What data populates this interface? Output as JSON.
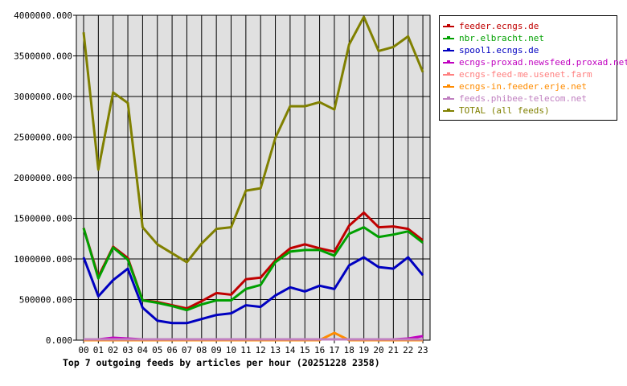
{
  "chart_data": {
    "type": "line",
    "title": "Top 7 outgoing feeds by articles per hour (20251228 2358)",
    "xlabel": "",
    "ylabel": "",
    "x": [
      "00",
      "01",
      "02",
      "03",
      "04",
      "05",
      "06",
      "07",
      "08",
      "09",
      "10",
      "11",
      "12",
      "13",
      "14",
      "15",
      "16",
      "17",
      "18",
      "19",
      "20",
      "21",
      "22",
      "23"
    ],
    "ylim": [
      0,
      4000000
    ],
    "yticks": [
      "0.000",
      "500000.000",
      "1000000.000",
      "1500000.000",
      "2000000.000",
      "2500000.000",
      "3000000.000",
      "3500000.000",
      "4000000.000"
    ],
    "grid": true,
    "legend_position": "right",
    "series": [
      {
        "name": "feeder.ecngs.de",
        "color": "#c00000",
        "values": [
          1380000,
          780000,
          1150000,
          1010000,
          490000,
          470000,
          430000,
          390000,
          480000,
          580000,
          560000,
          750000,
          770000,
          980000,
          1130000,
          1180000,
          1130000,
          1090000,
          1410000,
          1570000,
          1390000,
          1400000,
          1370000,
          1230000
        ]
      },
      {
        "name": "nbr.elbracht.net",
        "color": "#00a000",
        "values": [
          1380000,
          760000,
          1140000,
          990000,
          490000,
          460000,
          420000,
          370000,
          440000,
          490000,
          490000,
          630000,
          680000,
          960000,
          1090000,
          1110000,
          1110000,
          1040000,
          1310000,
          1390000,
          1270000,
          1300000,
          1340000,
          1200000
        ]
      },
      {
        "name": "spool1.ecngs.de",
        "color": "#0000c0",
        "values": [
          1020000,
          540000,
          740000,
          880000,
          400000,
          240000,
          210000,
          210000,
          260000,
          310000,
          330000,
          430000,
          410000,
          550000,
          650000,
          600000,
          670000,
          630000,
          920000,
          1020000,
          900000,
          880000,
          1020000,
          800000
        ]
      },
      {
        "name": "ecngs-proxad.newsfeed.proxad.net",
        "color": "#c000c0",
        "values": [
          10000,
          10000,
          30000,
          20000,
          10000,
          10000,
          10000,
          10000,
          10000,
          10000,
          10000,
          10000,
          10000,
          10000,
          10000,
          10000,
          10000,
          10000,
          10000,
          10000,
          10000,
          10000,
          20000,
          50000
        ]
      },
      {
        "name": "ecngs-feed-me.usenet.farm",
        "color": "#ff8080",
        "values": [
          10000,
          10000,
          10000,
          10000,
          10000,
          10000,
          10000,
          10000,
          10000,
          10000,
          10000,
          10000,
          10000,
          10000,
          10000,
          10000,
          10000,
          10000,
          10000,
          10000,
          10000,
          10000,
          10000,
          10000
        ]
      },
      {
        "name": "ecngs-in.feeder.erje.net",
        "color": "#ff8c00",
        "values": [
          0,
          0,
          0,
          0,
          0,
          0,
          0,
          0,
          0,
          0,
          0,
          0,
          0,
          0,
          0,
          0,
          0,
          90000,
          0,
          0,
          0,
          0,
          0,
          0
        ]
      },
      {
        "name": "feeds.phibee-telecom.net",
        "color": "#c080c0",
        "values": [
          10000,
          10000,
          10000,
          10000,
          10000,
          10000,
          10000,
          10000,
          10000,
          10000,
          10000,
          10000,
          10000,
          10000,
          10000,
          10000,
          10000,
          10000,
          10000,
          10000,
          10000,
          10000,
          10000,
          10000
        ]
      },
      {
        "name": "TOTAL (all feeds)",
        "color": "#808000",
        "values": [
          3790000,
          2100000,
          3050000,
          2920000,
          1390000,
          1180000,
          1070000,
          960000,
          1190000,
          1370000,
          1390000,
          1840000,
          1870000,
          2490000,
          2880000,
          2880000,
          2930000,
          2840000,
          3640000,
          3980000,
          3560000,
          3610000,
          3740000,
          3300000
        ]
      }
    ]
  }
}
